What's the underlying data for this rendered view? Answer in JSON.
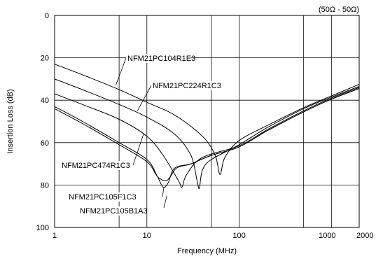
{
  "chart_data": {
    "type": "line",
    "title": "",
    "annotation": "(50Ω - 50Ω)",
    "xlabel": "Frequency (MHz)",
    "ylabel": "Insertion Loss (dB)",
    "xscale": "log",
    "xlim": [
      1,
      2000
    ],
    "ylim": [
      0,
      100
    ],
    "y_inverted": true,
    "x_ticks": [
      {
        "value": 1,
        "label": "1"
      },
      {
        "value": 10,
        "label": "10"
      },
      {
        "value": 100,
        "label": "100"
      },
      {
        "value": 1000,
        "label": "1000"
      },
      {
        "value": 2000,
        "label": "2000"
      }
    ],
    "y_ticks": [
      {
        "value": 0,
        "label": "0"
      },
      {
        "value": 20,
        "label": "20"
      },
      {
        "value": 40,
        "label": "40"
      },
      {
        "value": 60,
        "label": "60"
      },
      {
        "value": 80,
        "label": "80"
      },
      {
        "value": 100,
        "label": "100"
      }
    ],
    "grid": true,
    "legend": "none",
    "series": [
      {
        "name": "NFM21PC104R1E3",
        "points": [
          [
            1,
            23
          ],
          [
            2,
            28
          ],
          [
            5,
            35
          ],
          [
            10,
            41
          ],
          [
            20,
            47
          ],
          [
            40,
            57
          ],
          [
            55,
            66
          ],
          [
            62,
            75
          ],
          [
            70,
            67
          ],
          [
            100,
            59
          ],
          [
            200,
            52
          ],
          [
            500,
            43.5
          ],
          [
            1000,
            38
          ],
          [
            2000,
            32.5
          ]
        ]
      },
      {
        "name": "NFM21PC224R1C3",
        "points": [
          [
            1,
            30
          ],
          [
            2,
            35
          ],
          [
            5,
            42
          ],
          [
            10,
            48
          ],
          [
            20,
            56
          ],
          [
            30,
            66
          ],
          [
            35,
            78
          ],
          [
            37,
            81.5
          ],
          [
            40,
            73
          ],
          [
            50,
            68
          ],
          [
            100,
            61
          ],
          [
            200,
            53
          ],
          [
            500,
            44
          ],
          [
            1000,
            38.5
          ],
          [
            2000,
            33.5
          ]
        ]
      },
      {
        "name": "NFM21PC474R1C3",
        "points": [
          [
            1,
            37
          ],
          [
            2,
            42
          ],
          [
            5,
            49
          ],
          [
            10,
            57
          ],
          [
            15,
            66
          ],
          [
            22,
            78
          ],
          [
            24,
            81
          ],
          [
            27,
            75
          ],
          [
            40,
            67
          ],
          [
            100,
            61.5
          ],
          [
            200,
            54
          ],
          [
            500,
            45
          ],
          [
            1000,
            39
          ],
          [
            2000,
            34
          ]
        ]
      },
      {
        "name": "NFM21PC105F1C3",
        "points": [
          [
            1,
            43
          ],
          [
            2,
            50
          ],
          [
            5,
            60
          ],
          [
            10,
            68
          ],
          [
            13,
            76
          ],
          [
            15,
            81
          ],
          [
            17,
            79
          ],
          [
            20,
            72
          ],
          [
            30,
            70
          ],
          [
            50,
            66
          ],
          [
            100,
            62
          ],
          [
            200,
            54.5
          ],
          [
            500,
            45.5
          ],
          [
            1000,
            39.5
          ],
          [
            2000,
            34.5
          ]
        ]
      },
      {
        "name": "NFM21PC105B1A3",
        "points": [
          [
            1,
            44
          ],
          [
            2,
            51
          ],
          [
            5,
            61
          ],
          [
            10,
            69
          ],
          [
            13,
            76
          ],
          [
            16,
            78
          ],
          [
            18,
            76
          ],
          [
            21,
            72
          ],
          [
            30,
            70
          ],
          [
            50,
            66
          ],
          [
            100,
            62
          ],
          [
            200,
            54.5
          ],
          [
            500,
            45.5
          ],
          [
            1000,
            39.5
          ],
          [
            2000,
            34.5
          ]
        ]
      }
    ]
  }
}
